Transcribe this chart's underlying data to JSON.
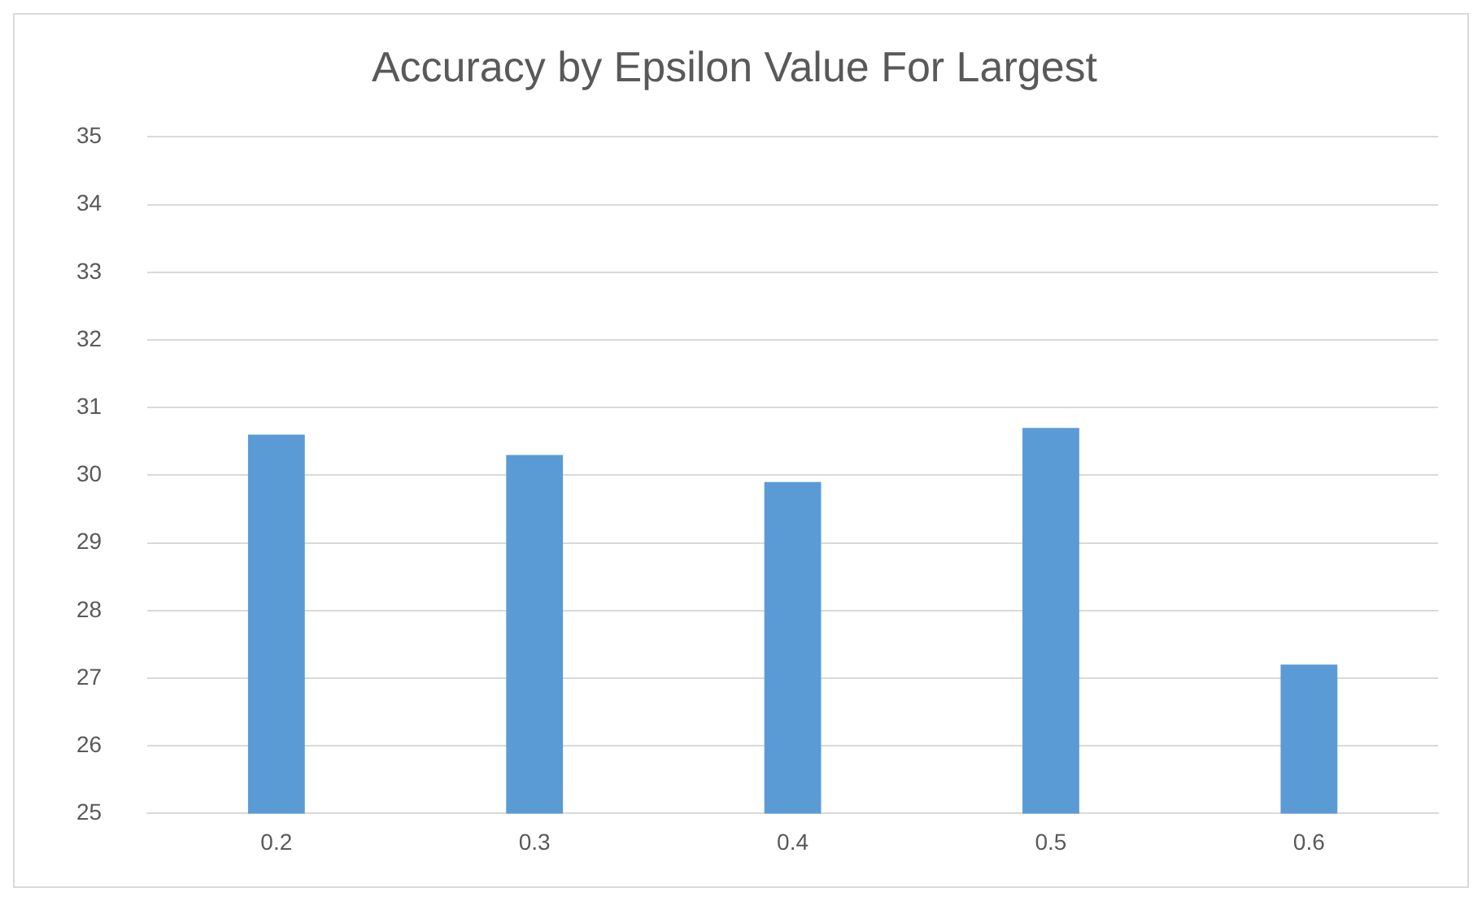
{
  "chart_data": {
    "type": "bar",
    "title": "Accuracy by Epsilon Value For Largest",
    "categories": [
      "0.2",
      "0.3",
      "0.4",
      "0.5",
      "0.6"
    ],
    "values": [
      30.6,
      30.3,
      29.9,
      30.7,
      27.2
    ],
    "color": "#5b9bd5",
    "ylim": [
      25,
      35
    ],
    "yticks": [
      25,
      26,
      27,
      28,
      29,
      30,
      31,
      32,
      33,
      34,
      35
    ],
    "grid": "y",
    "legend": false
  }
}
